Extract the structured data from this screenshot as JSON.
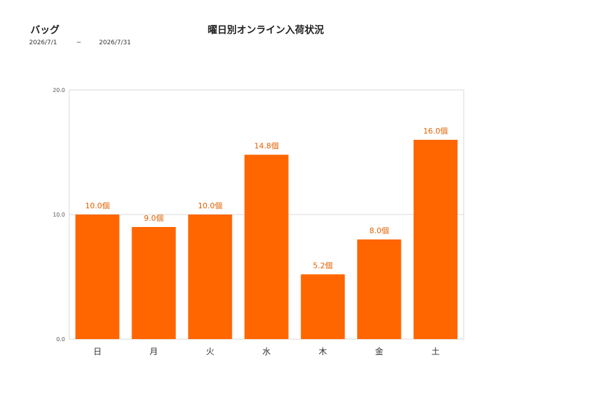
{
  "header": {
    "category": "バッグ",
    "date_from": "2026/7/1",
    "date_sep": "~",
    "date_to": "2026/7/31"
  },
  "chart_data": {
    "type": "bar",
    "title": "曜日別オンライン入荷状況",
    "categories": [
      "日",
      "月",
      "火",
      "水",
      "木",
      "金",
      "土"
    ],
    "values": [
      10.0,
      9.0,
      10.0,
      14.8,
      5.2,
      8.0,
      16.0
    ],
    "data_labels": [
      "10.0個",
      "9.0個",
      "10.0個",
      "14.8個",
      "5.2個",
      "8.0個",
      "16.0個"
    ],
    "y_ticks": [
      "0.0",
      "10.0",
      "20.0"
    ],
    "ylim": [
      0,
      20
    ],
    "grid": true,
    "legend": "none",
    "bar_color": "#ff6600",
    "label_color": "#e06000"
  }
}
